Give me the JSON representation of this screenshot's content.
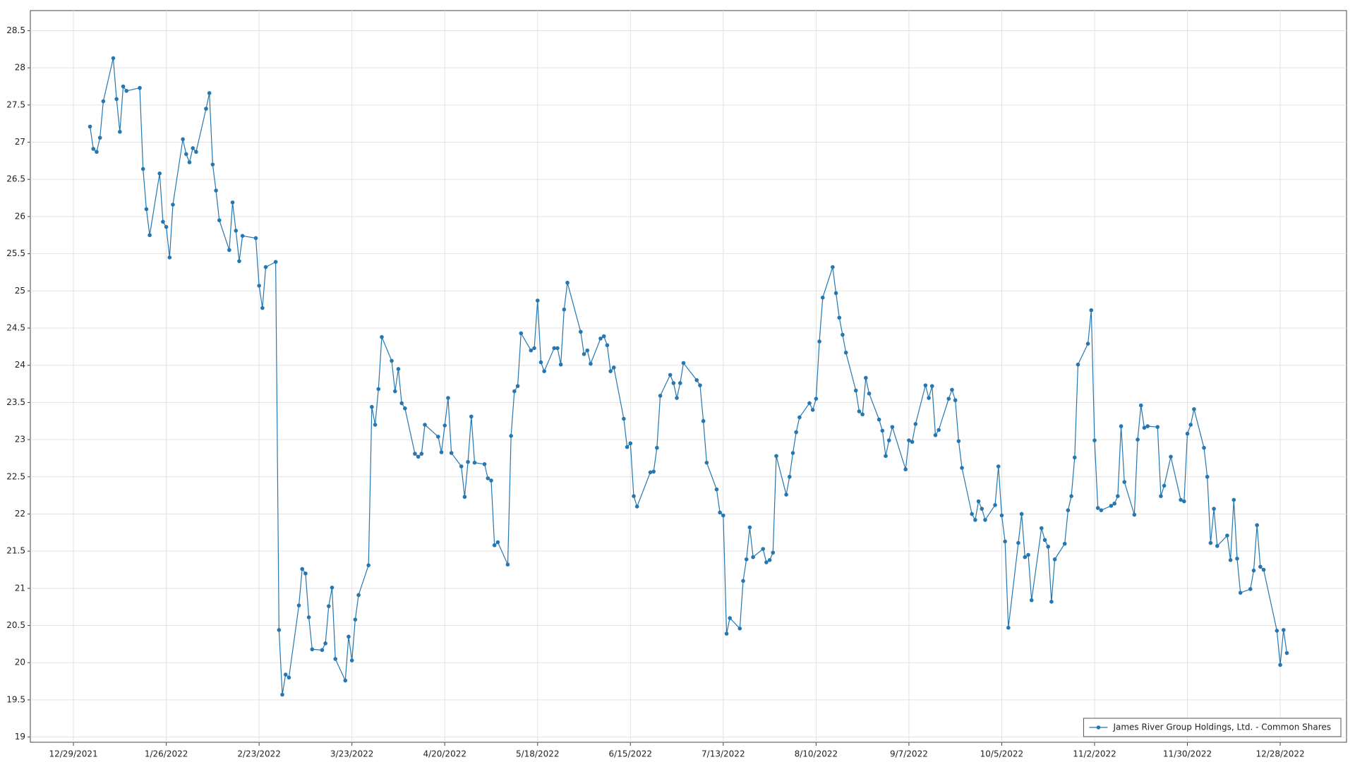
{
  "chart_data": {
    "type": "line",
    "x": [
      "1/3/2022",
      "1/4/2022",
      "1/5/2022",
      "1/6/2022",
      "1/7/2022",
      "1/10/2022",
      "1/11/2022",
      "1/12/2022",
      "1/13/2022",
      "1/14/2022",
      "1/18/2022",
      "1/19/2022",
      "1/20/2022",
      "1/21/2022",
      "1/24/2022",
      "1/25/2022",
      "1/26/2022",
      "1/27/2022",
      "1/28/2022",
      "1/31/2022",
      "2/1/2022",
      "2/2/2022",
      "2/3/2022",
      "2/4/2022",
      "2/7/2022",
      "2/8/2022",
      "2/9/2022",
      "2/10/2022",
      "2/11/2022",
      "2/14/2022",
      "2/15/2022",
      "2/16/2022",
      "2/17/2022",
      "2/18/2022",
      "2/22/2022",
      "2/23/2022",
      "2/24/2022",
      "2/25/2022",
      "2/28/2022",
      "3/1/2022",
      "3/2/2022",
      "3/3/2022",
      "3/4/2022",
      "3/7/2022",
      "3/8/2022",
      "3/9/2022",
      "3/10/2022",
      "3/11/2022",
      "3/14/2022",
      "3/15/2022",
      "3/16/2022",
      "3/17/2022",
      "3/18/2022",
      "3/21/2022",
      "3/22/2022",
      "3/23/2022",
      "3/24/2022",
      "3/25/2022",
      "3/28/2022",
      "3/29/2022",
      "3/30/2022",
      "3/31/2022",
      "4/1/2022",
      "4/4/2022",
      "4/5/2022",
      "4/6/2022",
      "4/7/2022",
      "4/8/2022",
      "4/11/2022",
      "4/12/2022",
      "4/13/2022",
      "4/14/2022",
      "4/18/2022",
      "4/19/2022",
      "4/20/2022",
      "4/21/2022",
      "4/22/2022",
      "4/25/2022",
      "4/26/2022",
      "4/27/2022",
      "4/28/2022",
      "4/29/2022",
      "5/2/2022",
      "5/3/2022",
      "5/4/2022",
      "5/5/2022",
      "5/6/2022",
      "5/9/2022",
      "5/10/2022",
      "5/11/2022",
      "5/12/2022",
      "5/13/2022",
      "5/16/2022",
      "5/17/2022",
      "5/18/2022",
      "5/19/2022",
      "5/20/2022",
      "5/23/2022",
      "5/24/2022",
      "5/25/2022",
      "5/26/2022",
      "5/27/2022",
      "5/31/2022",
      "6/1/2022",
      "6/2/2022",
      "6/3/2022",
      "6/6/2022",
      "6/7/2022",
      "6/8/2022",
      "6/9/2022",
      "6/10/2022",
      "6/13/2022",
      "6/14/2022",
      "6/15/2022",
      "6/16/2022",
      "6/17/2022",
      "6/21/2022",
      "6/22/2022",
      "6/23/2022",
      "6/24/2022",
      "6/27/2022",
      "6/28/2022",
      "6/29/2022",
      "6/30/2022",
      "7/1/2022",
      "7/5/2022",
      "7/6/2022",
      "7/7/2022",
      "7/8/2022",
      "7/11/2022",
      "7/12/2022",
      "7/13/2022",
      "7/14/2022",
      "7/15/2022",
      "7/18/2022",
      "7/19/2022",
      "7/20/2022",
      "7/21/2022",
      "7/22/2022",
      "7/25/2022",
      "7/26/2022",
      "7/27/2022",
      "7/28/2022",
      "7/29/2022",
      "8/1/2022",
      "8/2/2022",
      "8/3/2022",
      "8/4/2022",
      "8/5/2022",
      "8/8/2022",
      "8/9/2022",
      "8/10/2022",
      "8/11/2022",
      "8/12/2022",
      "8/15/2022",
      "8/16/2022",
      "8/17/2022",
      "8/18/2022",
      "8/19/2022",
      "8/22/2022",
      "8/23/2022",
      "8/24/2022",
      "8/25/2022",
      "8/26/2022",
      "8/29/2022",
      "8/30/2022",
      "8/31/2022",
      "9/1/2022",
      "9/2/2022",
      "9/6/2022",
      "9/7/2022",
      "9/8/2022",
      "9/9/2022",
      "9/12/2022",
      "9/13/2022",
      "9/14/2022",
      "9/15/2022",
      "9/16/2022",
      "9/19/2022",
      "9/20/2022",
      "9/21/2022",
      "9/22/2022",
      "9/23/2022",
      "9/26/2022",
      "9/27/2022",
      "9/28/2022",
      "9/29/2022",
      "9/30/2022",
      "10/3/2022",
      "10/4/2022",
      "10/5/2022",
      "10/6/2022",
      "10/7/2022",
      "10/10/2022",
      "10/11/2022",
      "10/12/2022",
      "10/13/2022",
      "10/14/2022",
      "10/17/2022",
      "10/18/2022",
      "10/19/2022",
      "10/20/2022",
      "10/21/2022",
      "10/24/2022",
      "10/25/2022",
      "10/26/2022",
      "10/27/2022",
      "10/28/2022",
      "10/31/2022",
      "11/1/2022",
      "11/2/2022",
      "11/3/2022",
      "11/4/2022",
      "11/7/2022",
      "11/8/2022",
      "11/9/2022",
      "11/10/2022",
      "11/11/2022",
      "11/14/2022",
      "11/15/2022",
      "11/16/2022",
      "11/17/2022",
      "11/18/2022",
      "11/21/2022",
      "11/22/2022",
      "11/23/2022",
      "11/25/2022",
      "11/28/2022",
      "11/29/2022",
      "11/30/2022",
      "12/1/2022",
      "12/2/2022",
      "12/5/2022",
      "12/6/2022",
      "12/7/2022",
      "12/8/2022",
      "12/9/2022",
      "12/12/2022",
      "12/13/2022",
      "12/14/2022",
      "12/15/2022",
      "12/16/2022",
      "12/19/2022",
      "12/20/2022",
      "12/21/2022",
      "12/22/2022",
      "12/23/2022",
      "12/27/2022",
      "12/28/2022",
      "12/29/2022",
      "12/30/2022"
    ],
    "series": [
      {
        "name": "James River Group Holdings, Ltd. - Common Shares",
        "color": "#2677b0",
        "values": [
          27.21,
          26.91,
          26.87,
          27.06,
          27.55,
          28.13,
          27.58,
          27.14,
          27.75,
          27.69,
          27.73,
          26.64,
          26.1,
          25.75,
          26.58,
          25.93,
          25.86,
          25.45,
          26.16,
          27.04,
          26.84,
          26.73,
          26.92,
          26.87,
          27.45,
          27.66,
          26.7,
          26.35,
          25.95,
          25.55,
          26.19,
          25.81,
          25.4,
          25.74,
          25.71,
          25.07,
          24.77,
          25.32,
          25.39,
          20.44,
          19.57,
          19.84,
          19.8,
          20.77,
          21.26,
          21.2,
          20.61,
          20.18,
          20.17,
          20.26,
          20.76,
          21.01,
          20.05,
          19.76,
          20.35,
          20.03,
          20.58,
          20.91,
          21.31,
          23.44,
          23.2,
          23.68,
          24.38,
          24.06,
          23.65,
          23.95,
          23.49,
          23.42,
          22.81,
          22.77,
          22.81,
          23.2,
          23.04,
          22.83,
          23.19,
          23.56,
          22.82,
          22.64,
          22.23,
          22.7,
          23.31,
          22.69,
          22.67,
          22.48,
          22.45,
          21.58,
          21.62,
          21.32,
          23.05,
          23.65,
          23.72,
          24.43,
          24.2,
          24.23,
          24.87,
          24.04,
          23.92,
          24.23,
          24.23,
          24.01,
          24.75,
          25.11,
          24.45,
          24.15,
          24.2,
          24.02,
          24.36,
          24.39,
          24.27,
          23.92,
          23.97,
          23.28,
          22.9,
          22.95,
          22.24,
          22.1,
          22.56,
          22.57,
          22.89,
          23.59,
          23.87,
          23.76,
          23.56,
          23.76,
          24.03,
          23.8,
          23.73,
          23.25,
          22.69,
          22.33,
          22.02,
          21.98,
          20.39,
          20.6,
          20.46,
          21.1,
          21.39,
          21.82,
          21.42,
          21.53,
          21.35,
          21.38,
          21.48,
          22.78,
          22.26,
          22.5,
          22.82,
          23.1,
          23.3,
          23.49,
          23.4,
          23.55,
          24.32,
          24.91,
          25.32,
          24.97,
          24.64,
          24.41,
          24.17,
          23.66,
          23.38,
          23.34,
          23.83,
          23.62,
          23.27,
          23.12,
          22.78,
          22.99,
          23.17,
          22.6,
          22.99,
          22.97,
          23.21,
          23.73,
          23.56,
          23.72,
          23.06,
          23.13,
          23.55,
          23.67,
          23.53,
          22.98,
          22.62,
          22.0,
          21.92,
          22.17,
          22.07,
          21.92,
          22.12,
          22.64,
          21.98,
          21.63,
          20.47,
          21.61,
          22.0,
          21.42,
          21.45,
          20.84,
          21.81,
          21.65,
          21.56,
          20.82,
          21.39,
          21.6,
          22.05,
          22.24,
          22.76,
          24.01,
          24.29,
          24.74,
          22.99,
          22.08,
          22.05,
          22.11,
          22.14,
          22.24,
          23.18,
          22.43,
          21.99,
          23.0,
          23.46,
          23.16,
          23.18,
          23.17,
          22.24,
          22.38,
          22.77,
          22.19,
          22.17,
          23.08,
          23.2,
          23.41,
          22.89,
          22.5,
          21.61,
          22.07,
          21.57,
          21.71,
          21.38,
          22.19,
          21.4,
          20.94,
          20.99,
          21.24,
          21.85,
          21.29,
          21.25,
          20.43,
          19.97,
          20.44,
          20.13
        ]
      }
    ],
    "xlim": [
      "12/16/2021",
      "1/17/2023"
    ],
    "xticks": [
      "12/29/2021",
      "1/26/2022",
      "2/23/2022",
      "3/23/2022",
      "4/20/2022",
      "5/18/2022",
      "6/15/2022",
      "7/13/2022",
      "8/10/2022",
      "9/7/2022",
      "10/5/2022",
      "11/2/2022",
      "11/30/2022",
      "12/28/2022"
    ],
    "ylim": [
      18.93,
      28.77
    ],
    "yticks": [
      19,
      19.5,
      20,
      20.5,
      21,
      21.5,
      22,
      22.5,
      23,
      23.5,
      24,
      24.5,
      25,
      25.5,
      26,
      26.5,
      27,
      27.5,
      28,
      28.5
    ],
    "grid": true,
    "legend": "lower right"
  }
}
